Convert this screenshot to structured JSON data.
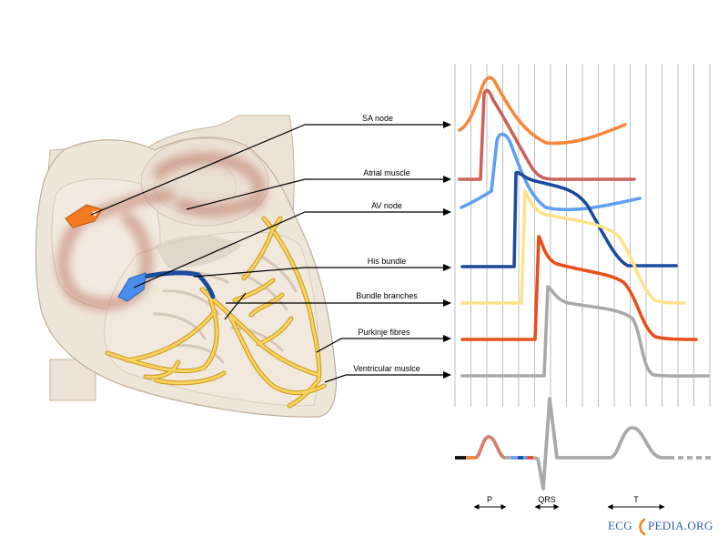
{
  "labels": {
    "sa_node": "SA node",
    "atrial_muscle": "Atrial muscle",
    "av_node": "AV node",
    "his_bundle": "His bundle",
    "bundle_branches": "Bundle branches",
    "purkinje_fibres": "Purkinje fibres",
    "ventricular_muscle": "Ventricular muslce"
  },
  "ecg_waves": {
    "p": "P",
    "qrs": "QRS",
    "t": "T"
  },
  "logo": {
    "left": "ECG",
    "right": "PEDIA.ORG"
  },
  "colors": {
    "sa_node": "#f7883a",
    "atrial_muscle": "#c9625c",
    "av_node": "#5fa0f2",
    "his_bundle": "#1b4c9c",
    "bundle_branches": "#ffe38a",
    "purkinje_fibres": "#e8501a",
    "ventricular_muscle": "#a9a9a9"
  }
}
